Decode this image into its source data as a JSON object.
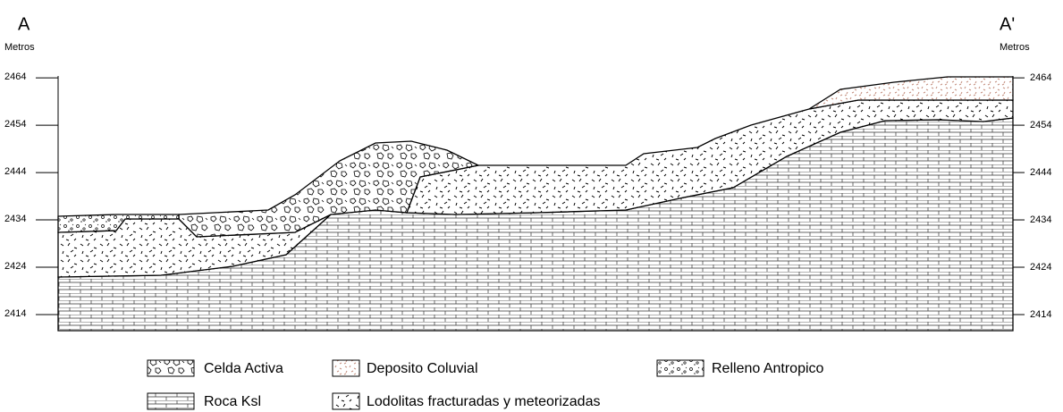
{
  "header": {
    "left_label": "A",
    "right_label": "A'",
    "left_unit": "Metros",
    "right_unit": "Metros"
  },
  "axis": {
    "ylim": [
      2410.6,
      2464.4
    ],
    "ticks": [
      2464,
      2454,
      2444,
      2434,
      2424,
      2414
    ]
  },
  "legend": [
    "Celda Activa",
    "Deposito Coluvial",
    "Relleno Antropico",
    "Roca Ksl",
    "Lodolitas fracturadas y meteorizadas"
  ]
}
